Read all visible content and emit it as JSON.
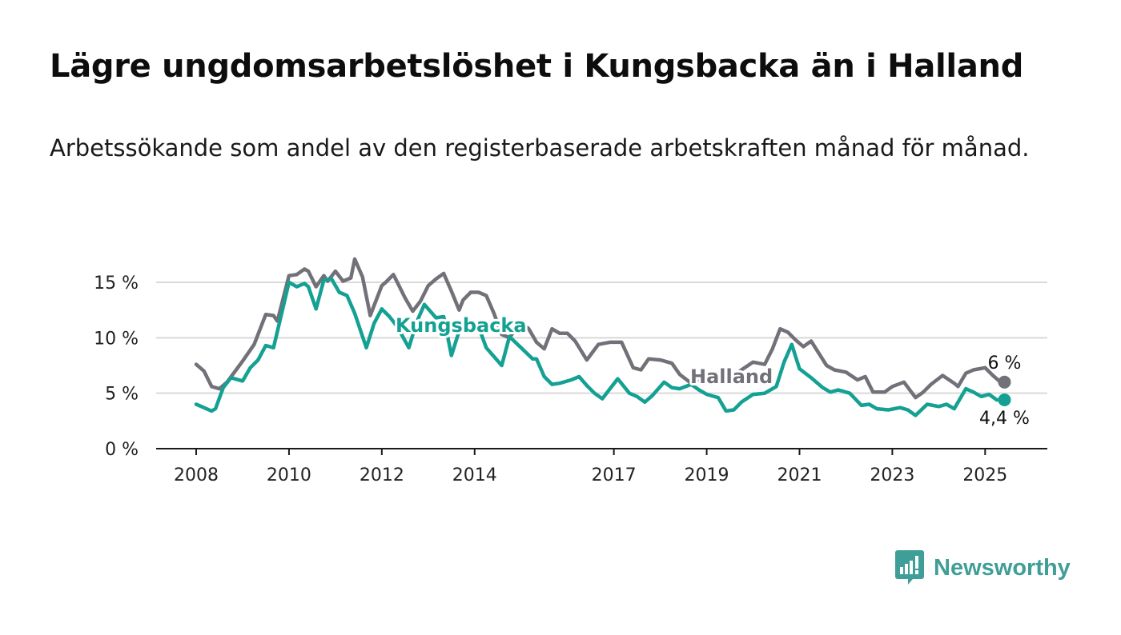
{
  "title": "Lägre ungdomsarbetslöshet i Kungsbacka än i Halland",
  "subtitle": "Arbetssökande som andel av den registerbaserade arbetskraften månad för månad.",
  "brand": {
    "name": "Newsworthy",
    "color": "#3f9e97",
    "icon": "newsworthy-chart-bubble-icon"
  },
  "chart_data": {
    "type": "line",
    "x_start": "2008-01",
    "x_end": "2025-06",
    "x_ticks": [
      "2008",
      "2010",
      "2012",
      "2014",
      "2017",
      "2019",
      "2021",
      "2023",
      "2025"
    ],
    "y_ticks": [
      "0 %",
      "5 %",
      "10 %",
      "15 %"
    ],
    "y_tick_values": [
      0,
      5,
      10,
      15
    ],
    "ylim": [
      0,
      16.5
    ],
    "grid": true,
    "series": [
      {
        "name": "Halland",
        "color": "#727078",
        "end_label": "6 %",
        "anchors": [
          [
            "2008-01",
            7.6
          ],
          [
            "2008-03",
            7.0
          ],
          [
            "2008-05",
            5.6
          ],
          [
            "2008-07",
            5.4
          ],
          [
            "2008-09",
            6.0
          ],
          [
            "2009-01",
            7.9
          ],
          [
            "2009-04",
            9.4
          ],
          [
            "2009-07",
            12.1
          ],
          [
            "2009-09",
            12.0
          ],
          [
            "2009-10",
            11.5
          ],
          [
            "2010-01",
            15.6
          ],
          [
            "2010-03",
            15.7
          ],
          [
            "2010-05",
            16.2
          ],
          [
            "2010-06",
            16.0
          ],
          [
            "2010-08",
            14.6
          ],
          [
            "2010-10",
            15.6
          ],
          [
            "2010-11",
            15.1
          ],
          [
            "2011-01",
            16.0
          ],
          [
            "2011-03",
            15.1
          ],
          [
            "2011-05",
            15.4
          ],
          [
            "2011-06",
            17.1
          ],
          [
            "2011-08",
            15.5
          ],
          [
            "2011-10",
            12.0
          ],
          [
            "2011-11",
            12.9
          ],
          [
            "2012-01",
            14.7
          ],
          [
            "2012-02",
            15.0
          ],
          [
            "2012-04",
            15.7
          ],
          [
            "2012-05",
            15.0
          ],
          [
            "2012-07",
            13.6
          ],
          [
            "2012-09",
            12.4
          ],
          [
            "2012-11",
            13.3
          ],
          [
            "2013-01",
            14.7
          ],
          [
            "2013-03",
            15.3
          ],
          [
            "2013-05",
            15.8
          ],
          [
            "2013-07",
            14.2
          ],
          [
            "2013-09",
            12.5
          ],
          [
            "2013-10",
            13.4
          ],
          [
            "2013-12",
            14.1
          ],
          [
            "2014-02",
            14.1
          ],
          [
            "2014-04",
            13.8
          ],
          [
            "2014-06",
            12.2
          ],
          [
            "2014-08",
            10.3
          ],
          [
            "2014-10",
            10.0
          ],
          [
            "2015-01",
            11.4
          ],
          [
            "2015-03",
            10.8
          ],
          [
            "2015-05",
            9.6
          ],
          [
            "2015-07",
            9.0
          ],
          [
            "2015-09",
            10.8
          ],
          [
            "2015-11",
            10.4
          ],
          [
            "2016-01",
            10.4
          ],
          [
            "2016-03",
            9.7
          ],
          [
            "2016-06",
            8.0
          ],
          [
            "2016-09",
            9.4
          ],
          [
            "2016-12",
            9.6
          ],
          [
            "2017-03",
            9.6
          ],
          [
            "2017-06",
            7.3
          ],
          [
            "2017-08",
            7.1
          ],
          [
            "2017-10",
            8.1
          ],
          [
            "2018-01",
            8.0
          ],
          [
            "2018-04",
            7.7
          ],
          [
            "2018-06",
            6.7
          ],
          [
            "2018-09",
            5.9
          ],
          [
            "2019-01",
            6.6
          ],
          [
            "2019-04",
            6.8
          ],
          [
            "2019-07",
            6.3
          ],
          [
            "2019-10",
            7.1
          ],
          [
            "2020-01",
            7.8
          ],
          [
            "2020-04",
            7.6
          ],
          [
            "2020-06",
            9.0
          ],
          [
            "2020-08",
            10.8
          ],
          [
            "2020-10",
            10.5
          ],
          [
            "2020-12",
            9.8
          ],
          [
            "2021-02",
            9.2
          ],
          [
            "2021-04",
            9.7
          ],
          [
            "2021-06",
            8.6
          ],
          [
            "2021-08",
            7.5
          ],
          [
            "2021-10",
            7.1
          ],
          [
            "2022-01",
            6.9
          ],
          [
            "2022-04",
            6.2
          ],
          [
            "2022-06",
            6.5
          ],
          [
            "2022-08",
            5.1
          ],
          [
            "2022-11",
            5.1
          ],
          [
            "2023-01",
            5.6
          ],
          [
            "2023-04",
            6.0
          ],
          [
            "2023-07",
            4.6
          ],
          [
            "2023-09",
            5.1
          ],
          [
            "2023-11",
            5.8
          ],
          [
            "2024-02",
            6.6
          ],
          [
            "2024-05",
            5.9
          ],
          [
            "2024-06",
            5.6
          ],
          [
            "2024-08",
            6.8
          ],
          [
            "2024-10",
            7.1
          ],
          [
            "2025-01",
            7.3
          ],
          [
            "2025-03",
            6.6
          ],
          [
            "2025-05",
            6.0
          ],
          [
            "2025-06",
            6.0
          ]
        ]
      },
      {
        "name": "Kungsbacka",
        "color": "#14a193",
        "end_label": "4,4 %",
        "anchors": [
          [
            "2008-01",
            4.0
          ],
          [
            "2008-03",
            3.7
          ],
          [
            "2008-05",
            3.4
          ],
          [
            "2008-06",
            3.6
          ],
          [
            "2008-08",
            5.5
          ],
          [
            "2008-10",
            6.4
          ],
          [
            "2009-01",
            6.1
          ],
          [
            "2009-03",
            7.3
          ],
          [
            "2009-05",
            8.0
          ],
          [
            "2009-07",
            9.3
          ],
          [
            "2009-09",
            9.1
          ],
          [
            "2010-01",
            15.0
          ],
          [
            "2010-03",
            14.6
          ],
          [
            "2010-05",
            14.9
          ],
          [
            "2010-06",
            14.6
          ],
          [
            "2010-08",
            12.6
          ],
          [
            "2010-10",
            15.2
          ],
          [
            "2010-12",
            15.3
          ],
          [
            "2011-02",
            14.1
          ],
          [
            "2011-04",
            13.8
          ],
          [
            "2011-06",
            12.2
          ],
          [
            "2011-09",
            9.1
          ],
          [
            "2011-11",
            11.3
          ],
          [
            "2012-01",
            12.6
          ],
          [
            "2012-03",
            11.9
          ],
          [
            "2012-05",
            11.0
          ],
          [
            "2012-08",
            9.1
          ],
          [
            "2012-10",
            11.4
          ],
          [
            "2012-12",
            13.0
          ],
          [
            "2013-03",
            11.8
          ],
          [
            "2013-05",
            11.9
          ],
          [
            "2013-07",
            8.4
          ],
          [
            "2013-09",
            10.6
          ],
          [
            "2013-12",
            10.9
          ],
          [
            "2014-02",
            11.0
          ],
          [
            "2014-04",
            9.1
          ],
          [
            "2014-06",
            8.3
          ],
          [
            "2014-08",
            7.5
          ],
          [
            "2014-10",
            10.1
          ],
          [
            "2015-01",
            9.1
          ],
          [
            "2015-04",
            8.1
          ],
          [
            "2015-05",
            8.1
          ],
          [
            "2015-07",
            6.5
          ],
          [
            "2015-09",
            5.8
          ],
          [
            "2015-11",
            5.9
          ],
          [
            "2016-02",
            6.2
          ],
          [
            "2016-04",
            6.5
          ],
          [
            "2016-06",
            5.7
          ],
          [
            "2016-08",
            5.0
          ],
          [
            "2016-10",
            4.5
          ],
          [
            "2016-12",
            5.4
          ],
          [
            "2017-02",
            6.3
          ],
          [
            "2017-05",
            5.0
          ],
          [
            "2017-07",
            4.7
          ],
          [
            "2017-09",
            4.2
          ],
          [
            "2017-11",
            4.8
          ],
          [
            "2018-02",
            6.0
          ],
          [
            "2018-04",
            5.5
          ],
          [
            "2018-06",
            5.4
          ],
          [
            "2018-09",
            5.8
          ],
          [
            "2018-11",
            5.3
          ],
          [
            "2019-01",
            4.9
          ],
          [
            "2019-04",
            4.6
          ],
          [
            "2019-06",
            3.4
          ],
          [
            "2019-08",
            3.5
          ],
          [
            "2019-10",
            4.2
          ],
          [
            "2020-01",
            4.9
          ],
          [
            "2020-04",
            5.0
          ],
          [
            "2020-07",
            5.6
          ],
          [
            "2020-09",
            7.8
          ],
          [
            "2020-11",
            9.4
          ],
          [
            "2021-01",
            7.2
          ],
          [
            "2021-04",
            6.4
          ],
          [
            "2021-07",
            5.5
          ],
          [
            "2021-09",
            5.1
          ],
          [
            "2021-11",
            5.3
          ],
          [
            "2022-02",
            5.0
          ],
          [
            "2022-05",
            3.9
          ],
          [
            "2022-07",
            4.0
          ],
          [
            "2022-09",
            3.6
          ],
          [
            "2022-12",
            3.5
          ],
          [
            "2023-03",
            3.7
          ],
          [
            "2023-05",
            3.5
          ],
          [
            "2023-07",
            3.0
          ],
          [
            "2023-10",
            4.0
          ],
          [
            "2024-01",
            3.8
          ],
          [
            "2024-03",
            4.0
          ],
          [
            "2024-05",
            3.6
          ],
          [
            "2024-08",
            5.4
          ],
          [
            "2024-10",
            5.1
          ],
          [
            "2024-12",
            4.7
          ],
          [
            "2025-02",
            4.9
          ],
          [
            "2025-04",
            4.4
          ],
          [
            "2025-06",
            4.4
          ]
        ]
      }
    ]
  }
}
